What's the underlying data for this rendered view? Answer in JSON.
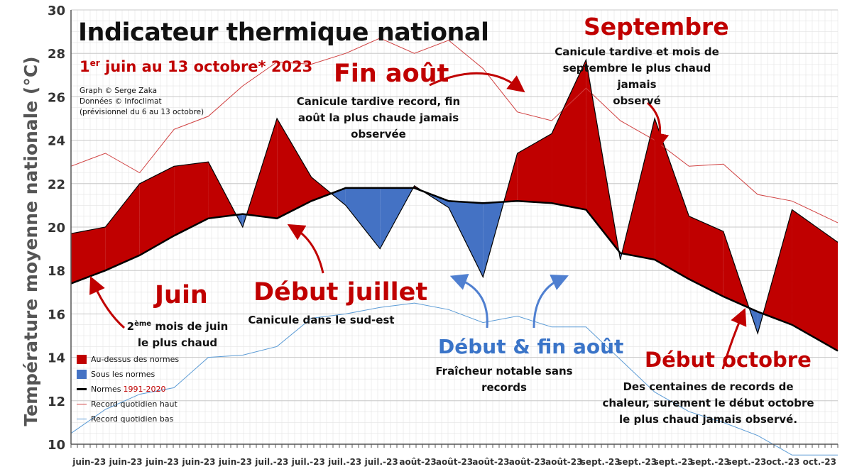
{
  "title": "Indicateur thermique national",
  "subtitle_sup": "er",
  "subtitle_pre": "1",
  "subtitle_rest": " juin au 13 octobre* 2023",
  "credits": [
    "Graph © Serge Zaka",
    "Données © Infoclimat",
    "(prévisionnel du 6 au 13 octobre)"
  ],
  "annotations": {
    "juin": {
      "heading": "Juin",
      "line1_pre": "2",
      "line1_sup": "ème",
      "line1_post": " mois de juin",
      "line2": "le plus chaud"
    },
    "juillet": {
      "heading": "Début juillet",
      "text": "Canicule dans le sud-est"
    },
    "fin_aout": {
      "heading": "Fin août",
      "text": [
        "Canicule tardive record, fin",
        "août la plus chaude jamais",
        "observée"
      ]
    },
    "aout_bleu": {
      "heading": "Début & fin août",
      "text": [
        "Fraîcheur notable sans",
        "records"
      ]
    },
    "septembre": {
      "heading": "Septembre",
      "text": [
        "Canicule tardive et mois de",
        "septembre le plus chaud jamais",
        "observé"
      ]
    },
    "octobre": {
      "heading": "Début octobre",
      "text": [
        "Des centaines de records de",
        "chaleur, surement le début octobre",
        "le plus chaud jamais observé."
      ]
    }
  },
  "legend": {
    "above": "Au-dessus des normes",
    "below": "Sous les normes",
    "normals_pre": "Normes ",
    "normals_years": "1991-2020",
    "record_high": "Record quotidien haut",
    "record_low": "Record quotidien bas"
  },
  "colors": {
    "above": "#c00000",
    "below": "#4472c4",
    "normals": "#000000",
    "record_high": "#d04040",
    "record_low": "#5b9bd5",
    "accent_red": "#c00000",
    "accent_blue": "#3a74c8"
  },
  "chart_data": {
    "type": "area",
    "ylabel": "Température moyenne nationale (°C)",
    "xlabel": "",
    "ylim": [
      10,
      30
    ],
    "yticks": [
      10,
      12,
      14,
      16,
      18,
      20,
      22,
      24,
      26,
      28,
      30
    ],
    "grid": true,
    "legend_position": "bottom-left",
    "x_tick_labels": [
      "juin-23",
      "juin-23",
      "juin-23",
      "juin-23",
      "juin-23",
      "juil.-23",
      "juil.-23",
      "juil.-23",
      "juil.-23",
      "août-23",
      "août-23",
      "août-23",
      "août-23",
      "août-23",
      "sept.-23",
      "sept.-23",
      "sept.-23",
      "sept.-23",
      "sept.-23",
      "oct.-23",
      "oct.-23"
    ],
    "x": [
      "2023-06-01",
      "2023-06-07",
      "2023-06-13",
      "2023-06-19",
      "2023-06-25",
      "2023-07-01",
      "2023-07-07",
      "2023-07-13",
      "2023-07-19",
      "2023-07-25",
      "2023-07-31",
      "2023-08-06",
      "2023-08-12",
      "2023-08-18",
      "2023-08-24",
      "2023-08-30",
      "2023-09-05",
      "2023-09-11",
      "2023-09-17",
      "2023-09-23",
      "2023-09-29",
      "2023-10-05",
      "2023-10-13"
    ],
    "series": [
      {
        "name": "Indicateur thermique",
        "values": [
          19.7,
          20.0,
          22.0,
          22.8,
          23.0,
          20.0,
          25.0,
          22.3,
          21.0,
          19.0,
          21.9,
          20.9,
          17.7,
          23.4,
          24.3,
          27.7,
          18.5,
          25.0,
          20.5,
          19.8,
          15.1,
          20.8,
          19.3
        ]
      },
      {
        "name": "Normes 1991-2020",
        "values": [
          17.4,
          18.0,
          18.7,
          19.6,
          20.4,
          20.6,
          20.4,
          21.2,
          21.8,
          21.8,
          21.8,
          21.2,
          21.1,
          21.2,
          21.1,
          20.8,
          18.8,
          18.5,
          17.6,
          16.8,
          16.1,
          15.5,
          14.3
        ]
      },
      {
        "name": "Record quotidien haut",
        "values": [
          22.8,
          23.4,
          22.5,
          24.5,
          25.1,
          26.5,
          27.6,
          27.5,
          28.0,
          28.7,
          28.0,
          28.6,
          27.3,
          25.3,
          24.9,
          26.4,
          24.9,
          24.0,
          22.8,
          22.9,
          21.5,
          21.2,
          20.2
        ]
      },
      {
        "name": "Record quotidien bas",
        "values": [
          10.5,
          11.6,
          12.3,
          12.6,
          14.0,
          14.1,
          14.5,
          15.8,
          16.0,
          16.3,
          16.5,
          16.2,
          15.6,
          15.9,
          15.4,
          15.4,
          13.9,
          12.4,
          11.5,
          11.0,
          10.4,
          9.5,
          9.5
        ]
      }
    ]
  }
}
